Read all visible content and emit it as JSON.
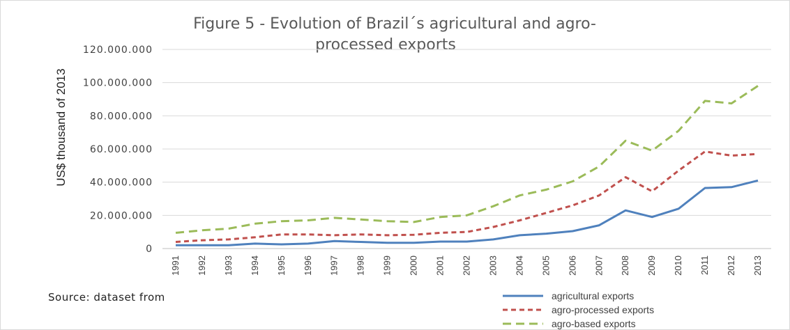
{
  "chart_data": {
    "type": "line",
    "title_lines": [
      "Figure 5 - Evolution of Brazil´s agricultural and agro-",
      "processed exports"
    ],
    "ylabel": "US$ thousand of 2013",
    "source_note": "Source: dataset from",
    "ylim": [
      0,
      120000000
    ],
    "y_ticks": [
      0,
      20000000,
      40000000,
      60000000,
      80000000,
      100000000,
      120000000
    ],
    "y_tick_labels": [
      "0",
      "20.000.000",
      "40.000.000",
      "60.000.000",
      "80.000.000",
      "100.000.000",
      "120.000.000"
    ],
    "categories": [
      "1991",
      "1992",
      "1993",
      "1994",
      "1995",
      "1996",
      "1997",
      "1998",
      "1999",
      "2000",
      "2001",
      "2002",
      "2003",
      "2004",
      "2005",
      "2006",
      "2007",
      "2008",
      "2009",
      "2010",
      "2011",
      "2012",
      "2013"
    ],
    "grid": true,
    "legend_position": "bottom-right",
    "series": [
      {
        "name": "agricultural exports",
        "color": "#4f81bd",
        "dash": "solid",
        "values": [
          2000000,
          2000000,
          2000000,
          3000000,
          2500000,
          3000000,
          4500000,
          4000000,
          3500000,
          3500000,
          4200000,
          4200000,
          5500000,
          8000000,
          9000000,
          10500000,
          14000000,
          23000000,
          19000000,
          24000000,
          36500000,
          37000000,
          41000000
        ]
      },
      {
        "name": "agro-processed exports",
        "color": "#c0504d",
        "dash": "short-dash",
        "values": [
          4000000,
          5000000,
          5500000,
          6800000,
          8500000,
          8500000,
          8000000,
          8500000,
          8000000,
          8300000,
          9500000,
          10000000,
          13000000,
          17000000,
          21500000,
          26000000,
          32000000,
          43000000,
          34500000,
          47000000,
          58500000,
          56000000,
          57000000
        ]
      },
      {
        "name": "agro-based exports",
        "color": "#9bbb59",
        "dash": "long-dash",
        "values": [
          9500000,
          11000000,
          12000000,
          15000000,
          16500000,
          17000000,
          18500000,
          17500000,
          16500000,
          16000000,
          19000000,
          20000000,
          25500000,
          32000000,
          35500000,
          40500000,
          49500000,
          65000000,
          59000000,
          71000000,
          89000000,
          87500000,
          98000000
        ]
      }
    ]
  }
}
